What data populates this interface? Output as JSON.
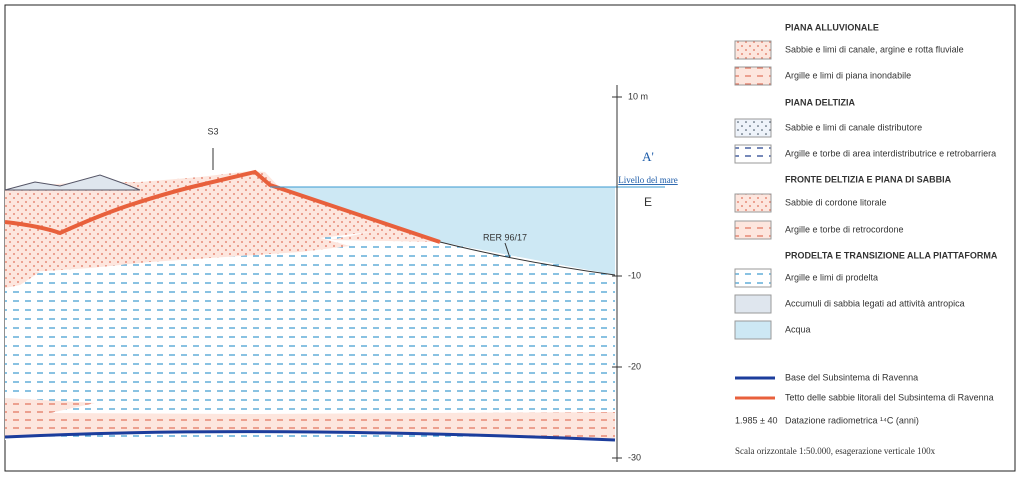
{
  "section": {
    "labels": {
      "well": "S3",
      "section_end": "A'",
      "direction": "E",
      "sea_level": "Livello del mare",
      "core": "RER 96/17"
    },
    "depth_ticks": [
      "10 m",
      "-10",
      "-20",
      "-30"
    ]
  },
  "legend": {
    "groups": [
      {
        "title": "PIANA ALLUVIONALE",
        "items": [
          "Sabbie e limi di canale, argine e rotta fluviale",
          "Argille e limi di piana inondabile"
        ]
      },
      {
        "title": "PIANA DELTIZIA",
        "items": [
          "Sabbie e limi di canale distributore",
          "Argille e torbe di area interdistributrice e retrobarriera"
        ]
      },
      {
        "title": "FRONTE DELTIZIA E PIANA DI SABBIA",
        "items": [
          "Sabbie di cordone litorale",
          "Argille e torbe di retrocordone"
        ]
      },
      {
        "title": "PRODELTA E TRANSIZIONE ALLA PIATTAFORMA",
        "items": [
          "Argille e limi di prodelta",
          "Accumuli di sabbia legati ad attività antropica",
          "Acqua"
        ]
      }
    ],
    "lines": [
      "Base del Subsintema di Ravenna",
      "Tetto delle sabbie litorali del Subsintema di Ravenna"
    ],
    "dating": {
      "sample": "1.985 ± 40",
      "label": "Datazione radiometrica ¹⁴C (anni)"
    },
    "scale_note": "Scala orizzontale 1:50.000, esagerazione verticale 100x"
  }
}
